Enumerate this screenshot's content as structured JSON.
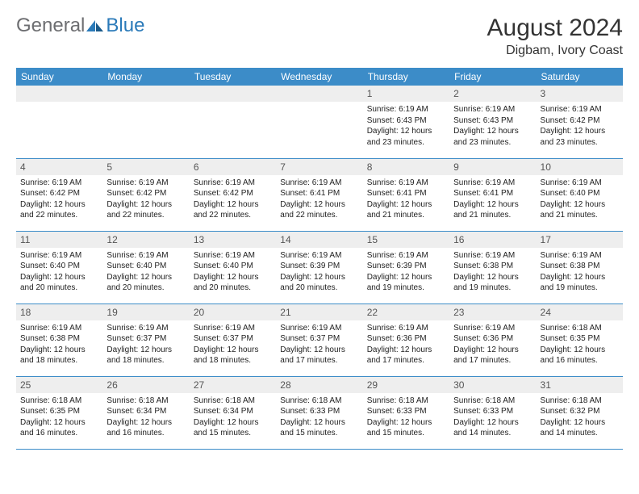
{
  "logo": {
    "word1": "General",
    "word2": "Blue"
  },
  "title": "August 2024",
  "location": "Digbam, Ivory Coast",
  "colors": {
    "header_bg": "#3c8cc8",
    "header_text": "#ffffff",
    "daynum_bg": "#eeeeee",
    "text": "#222222",
    "row_border": "#3c8cc8",
    "logo_gray": "#6d6e71",
    "logo_blue": "#2a7ab9"
  },
  "weekdays": [
    "Sunday",
    "Monday",
    "Tuesday",
    "Wednesday",
    "Thursday",
    "Friday",
    "Saturday"
  ],
  "weeks": [
    [
      {
        "n": "",
        "t": ""
      },
      {
        "n": "",
        "t": ""
      },
      {
        "n": "",
        "t": ""
      },
      {
        "n": "",
        "t": ""
      },
      {
        "n": "1",
        "t": "Sunrise: 6:19 AM\nSunset: 6:43 PM\nDaylight: 12 hours and 23 minutes."
      },
      {
        "n": "2",
        "t": "Sunrise: 6:19 AM\nSunset: 6:43 PM\nDaylight: 12 hours and 23 minutes."
      },
      {
        "n": "3",
        "t": "Sunrise: 6:19 AM\nSunset: 6:42 PM\nDaylight: 12 hours and 23 minutes."
      }
    ],
    [
      {
        "n": "4",
        "t": "Sunrise: 6:19 AM\nSunset: 6:42 PM\nDaylight: 12 hours and 22 minutes."
      },
      {
        "n": "5",
        "t": "Sunrise: 6:19 AM\nSunset: 6:42 PM\nDaylight: 12 hours and 22 minutes."
      },
      {
        "n": "6",
        "t": "Sunrise: 6:19 AM\nSunset: 6:42 PM\nDaylight: 12 hours and 22 minutes."
      },
      {
        "n": "7",
        "t": "Sunrise: 6:19 AM\nSunset: 6:41 PM\nDaylight: 12 hours and 22 minutes."
      },
      {
        "n": "8",
        "t": "Sunrise: 6:19 AM\nSunset: 6:41 PM\nDaylight: 12 hours and 21 minutes."
      },
      {
        "n": "9",
        "t": "Sunrise: 6:19 AM\nSunset: 6:41 PM\nDaylight: 12 hours and 21 minutes."
      },
      {
        "n": "10",
        "t": "Sunrise: 6:19 AM\nSunset: 6:40 PM\nDaylight: 12 hours and 21 minutes."
      }
    ],
    [
      {
        "n": "11",
        "t": "Sunrise: 6:19 AM\nSunset: 6:40 PM\nDaylight: 12 hours and 20 minutes."
      },
      {
        "n": "12",
        "t": "Sunrise: 6:19 AM\nSunset: 6:40 PM\nDaylight: 12 hours and 20 minutes."
      },
      {
        "n": "13",
        "t": "Sunrise: 6:19 AM\nSunset: 6:40 PM\nDaylight: 12 hours and 20 minutes."
      },
      {
        "n": "14",
        "t": "Sunrise: 6:19 AM\nSunset: 6:39 PM\nDaylight: 12 hours and 20 minutes."
      },
      {
        "n": "15",
        "t": "Sunrise: 6:19 AM\nSunset: 6:39 PM\nDaylight: 12 hours and 19 minutes."
      },
      {
        "n": "16",
        "t": "Sunrise: 6:19 AM\nSunset: 6:38 PM\nDaylight: 12 hours and 19 minutes."
      },
      {
        "n": "17",
        "t": "Sunrise: 6:19 AM\nSunset: 6:38 PM\nDaylight: 12 hours and 19 minutes."
      }
    ],
    [
      {
        "n": "18",
        "t": "Sunrise: 6:19 AM\nSunset: 6:38 PM\nDaylight: 12 hours and 18 minutes."
      },
      {
        "n": "19",
        "t": "Sunrise: 6:19 AM\nSunset: 6:37 PM\nDaylight: 12 hours and 18 minutes."
      },
      {
        "n": "20",
        "t": "Sunrise: 6:19 AM\nSunset: 6:37 PM\nDaylight: 12 hours and 18 minutes."
      },
      {
        "n": "21",
        "t": "Sunrise: 6:19 AM\nSunset: 6:37 PM\nDaylight: 12 hours and 17 minutes."
      },
      {
        "n": "22",
        "t": "Sunrise: 6:19 AM\nSunset: 6:36 PM\nDaylight: 12 hours and 17 minutes."
      },
      {
        "n": "23",
        "t": "Sunrise: 6:19 AM\nSunset: 6:36 PM\nDaylight: 12 hours and 17 minutes."
      },
      {
        "n": "24",
        "t": "Sunrise: 6:18 AM\nSunset: 6:35 PM\nDaylight: 12 hours and 16 minutes."
      }
    ],
    [
      {
        "n": "25",
        "t": "Sunrise: 6:18 AM\nSunset: 6:35 PM\nDaylight: 12 hours and 16 minutes."
      },
      {
        "n": "26",
        "t": "Sunrise: 6:18 AM\nSunset: 6:34 PM\nDaylight: 12 hours and 16 minutes."
      },
      {
        "n": "27",
        "t": "Sunrise: 6:18 AM\nSunset: 6:34 PM\nDaylight: 12 hours and 15 minutes."
      },
      {
        "n": "28",
        "t": "Sunrise: 6:18 AM\nSunset: 6:33 PM\nDaylight: 12 hours and 15 minutes."
      },
      {
        "n": "29",
        "t": "Sunrise: 6:18 AM\nSunset: 6:33 PM\nDaylight: 12 hours and 15 minutes."
      },
      {
        "n": "30",
        "t": "Sunrise: 6:18 AM\nSunset: 6:33 PM\nDaylight: 12 hours and 14 minutes."
      },
      {
        "n": "31",
        "t": "Sunrise: 6:18 AM\nSunset: 6:32 PM\nDaylight: 12 hours and 14 minutes."
      }
    ]
  ]
}
